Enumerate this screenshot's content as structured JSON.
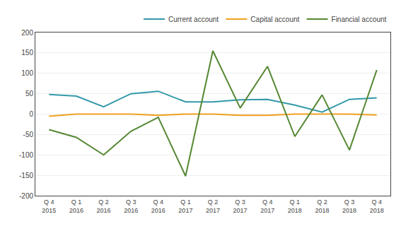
{
  "chart_data": {
    "type": "line",
    "categories": [
      "Q 4\n2015",
      "Q 1\n2016",
      "Q 2\n2016",
      "Q 3\n2016",
      "Q 4\n2016",
      "Q 1\n2017",
      "Q 2\n2017",
      "Q 3\n2017",
      "Q 4\n2017",
      "Q 1\n2018",
      "Q 2\n2018",
      "Q 3\n2018",
      "Q 4\n2018"
    ],
    "series": [
      {
        "name": "Current account",
        "color": "#3399aa",
        "values": [
          48,
          44,
          18,
          50,
          56,
          30,
          30,
          35,
          36,
          22,
          5,
          36,
          40
        ]
      },
      {
        "name": "Capital account",
        "color": "#f0a020",
        "values": [
          -5,
          0,
          0,
          0,
          -3,
          0,
          0,
          -3,
          -3,
          0,
          0,
          0,
          -2
        ]
      },
      {
        "name": "Financial account",
        "color": "#558833",
        "values": [
          -38,
          -57,
          -100,
          -42,
          -8,
          -152,
          155,
          15,
          117,
          -55,
          47,
          -88,
          108
        ]
      }
    ],
    "ylim": [
      -200,
      200
    ],
    "yticks": [
      -200,
      -150,
      -100,
      -50,
      0,
      50,
      100,
      150,
      200
    ],
    "grid": true,
    "legend": "upper right"
  }
}
